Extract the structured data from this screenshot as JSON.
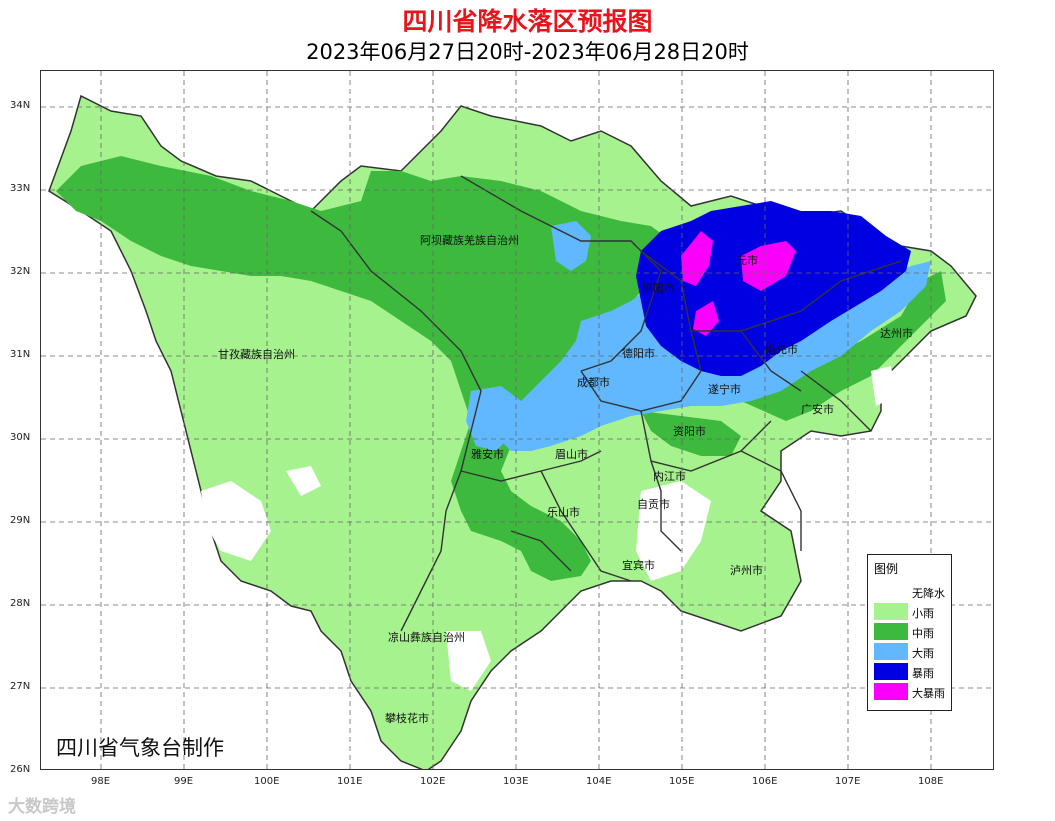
{
  "header": {
    "title": "四川省降水落区预报图",
    "subtitle": "2023年06月27日20时-2023年06月28日20时"
  },
  "axes": {
    "lat_labels": [
      "34N",
      "33N",
      "32N",
      "31N",
      "30N",
      "29N",
      "28N",
      "27N",
      "26N"
    ],
    "lon_labels": [
      "98E",
      "99E",
      "100E",
      "101E",
      "102E",
      "103E",
      "104E",
      "105E",
      "106E",
      "107E",
      "108E"
    ]
  },
  "regions": [
    {
      "name": "阿坝藏族羌族自治州"
    },
    {
      "name": "甘孜藏族自治州"
    },
    {
      "name": "凉山彝族自治州"
    },
    {
      "name": "攀枝花市"
    },
    {
      "name": "绵阳市"
    },
    {
      "name": "德阳市"
    },
    {
      "name": "成都市"
    },
    {
      "name": "遂宁市"
    },
    {
      "name": "雅安市"
    },
    {
      "name": "眉山市"
    },
    {
      "name": "资阳市"
    },
    {
      "name": "内江市"
    },
    {
      "name": "自贡市"
    },
    {
      "name": "乐山市"
    },
    {
      "name": "宜宾市"
    },
    {
      "name": "泸州市"
    },
    {
      "name": "达州市"
    },
    {
      "name": "广安市"
    },
    {
      "name": "南充市"
    },
    {
      "name": "元市"
    }
  ],
  "legend": {
    "title": "图例",
    "items": [
      {
        "label": "无降水",
        "color": "#ffffff"
      },
      {
        "label": "小雨",
        "color": "#a6f28f"
      },
      {
        "label": "中雨",
        "color": "#3dba3d"
      },
      {
        "label": "大雨",
        "color": "#61b8ff"
      },
      {
        "label": "暴雨",
        "color": "#0000e1"
      },
      {
        "label": "大暴雨",
        "color": "#fa00fa"
      }
    ]
  },
  "credit": "四川省气象台制作",
  "watermark": "大数跨境"
}
